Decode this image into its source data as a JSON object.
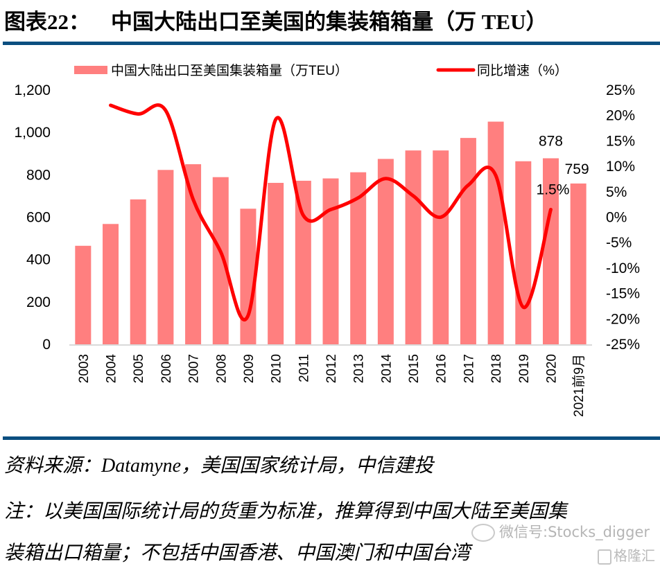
{
  "header": {
    "figure_number": "图表22：",
    "title": "中国大陆出口至美国的集装箱箱量（万 TEU）"
  },
  "footer": {
    "source": "资料来源：Datamyne，美国国家统计局，中信建投",
    "note_line1": "注：以美国国际统计局的货重为标准，推算得到中国大陆至美国集",
    "note_line2": "装箱出口箱量；不包括中国香港、中国澳门和中国台湾"
  },
  "watermark": {
    "wechat": "微信号:Stocks_digger",
    "brand": "格隆汇",
    "wechat_icon": "wechat-icon",
    "brand_icon": "gelonghui-logo-icon"
  },
  "colors": {
    "bar": "#ff7f7f",
    "line": "#ff0000",
    "rule": "#0b4f80",
    "axis": "#d9d9d9"
  },
  "chart_data": {
    "type": "bar+line",
    "title": "中国大陆出口至美国的集装箱箱量（万 TEU）",
    "categories": [
      "2003",
      "2004",
      "2005",
      "2006",
      "2007",
      "2008",
      "2009",
      "2010",
      "2011",
      "2012",
      "2013",
      "2014",
      "2015",
      "2016",
      "2017",
      "2018",
      "2019",
      "2020",
      "2021前9月"
    ],
    "series": [
      {
        "name": "中国大陆出口至美国集装箱量（万TEU）",
        "type": "bar",
        "axis": "left",
        "values": [
          465,
          568,
          684,
          823,
          850,
          789,
          640,
          762,
          772,
          783,
          812,
          875,
          915,
          915,
          974,
          1051,
          864,
          878,
          759
        ]
      },
      {
        "name": "同比增速（%）",
        "type": "line",
        "axis": "right",
        "smooth": true,
        "values": [
          null,
          22.0,
          20.3,
          21.0,
          3.5,
          -6.8,
          -19.3,
          19.2,
          0.4,
          1.5,
          3.8,
          7.6,
          4.2,
          0.0,
          6.3,
          8.2,
          -17.7,
          1.5,
          null
        ]
      }
    ],
    "data_labels": [
      {
        "category": "2020",
        "series": "bar",
        "text": "878"
      },
      {
        "category": "2021前9月",
        "series": "bar",
        "text": "759"
      },
      {
        "category": "2020",
        "series": "line",
        "text": "1.5%"
      }
    ],
    "left_axis": {
      "ylim": [
        0,
        1200
      ],
      "ticks": [
        0,
        200,
        400,
        600,
        800,
        1000,
        1200
      ],
      "tick_labels": [
        "0",
        "200",
        "400",
        "600",
        "800",
        "1,000",
        "1,200"
      ]
    },
    "right_axis": {
      "ylim": [
        -25,
        25
      ],
      "ticks": [
        -25,
        -20,
        -15,
        -10,
        -5,
        0,
        5,
        10,
        15,
        20,
        25
      ],
      "tick_labels": [
        "-25%",
        "-20%",
        "-15%",
        "-10%",
        "-5%",
        "0%",
        "5%",
        "10%",
        "15%",
        "20%",
        "25%"
      ]
    },
    "xlabel": "",
    "ylabel": "",
    "grid": false,
    "legend": {
      "placement": "top",
      "entries": [
        "中国大陆出口至美国集装箱量（万TEU）",
        "同比增速（%）"
      ]
    }
  }
}
